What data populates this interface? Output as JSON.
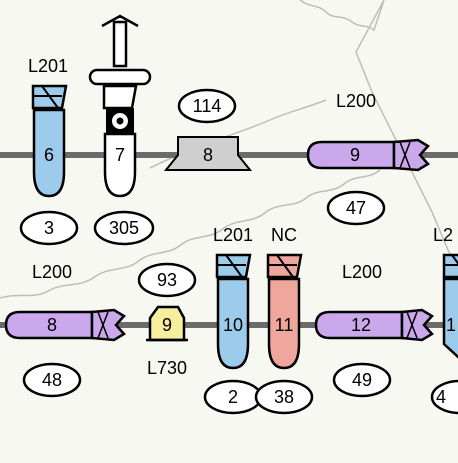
{
  "colors": {
    "background": "#f8f8f3",
    "line": "#6b6b6b",
    "blue": "#9dcbec",
    "purple": "#cba7ec",
    "salmon": "#efa69d",
    "yellow": "#f7ef9d",
    "grey": "#cfcfcf",
    "white": "#ffffff",
    "stroke": "#000000",
    "boundary": "#bdbdbd"
  },
  "row1": {
    "device_6": {
      "label": "L201",
      "number": "6",
      "count": "3"
    },
    "device_7": {
      "number": "7",
      "count": "305"
    },
    "device_8": {
      "number": "8",
      "count": "114"
    },
    "device_9": {
      "label": "L200",
      "number": "9",
      "count": "47"
    }
  },
  "row2": {
    "device_8": {
      "label": "L200",
      "number": "8",
      "count": "48"
    },
    "device_9": {
      "label": "L730",
      "number": "9",
      "count": "93"
    },
    "device_10": {
      "label": "L201",
      "number": "10",
      "count": "2"
    },
    "device_11": {
      "label": "NC",
      "number": "11",
      "count": "38"
    },
    "device_12": {
      "label": "L200",
      "number": "12",
      "count": "49"
    },
    "device_13": {
      "label": "L2",
      "number": "1",
      "count": "4"
    }
  }
}
